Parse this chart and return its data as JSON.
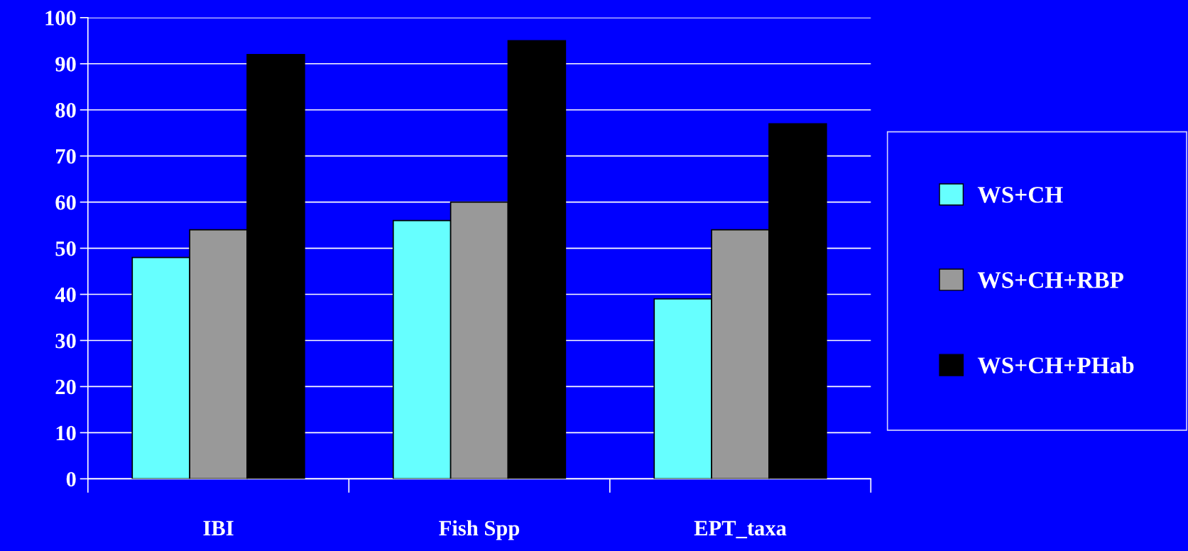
{
  "chart_data": {
    "type": "bar",
    "categories": [
      "IBI",
      "Fish Spp",
      "EPT_taxa"
    ],
    "series": [
      {
        "name": "WS+CH",
        "color": "#66ffff",
        "values": [
          48,
          56,
          39
        ]
      },
      {
        "name": "WS+CH+RBP",
        "color": "#999999",
        "values": [
          54,
          60,
          54
        ]
      },
      {
        "name": "WS+CH+PHab",
        "color": "#000000",
        "values": [
          92,
          95,
          77
        ]
      }
    ],
    "ylim": [
      0,
      100
    ],
    "yticks": [
      0,
      10,
      20,
      30,
      40,
      50,
      60,
      70,
      80,
      90,
      100
    ],
    "grid": "y",
    "legend": "right"
  }
}
